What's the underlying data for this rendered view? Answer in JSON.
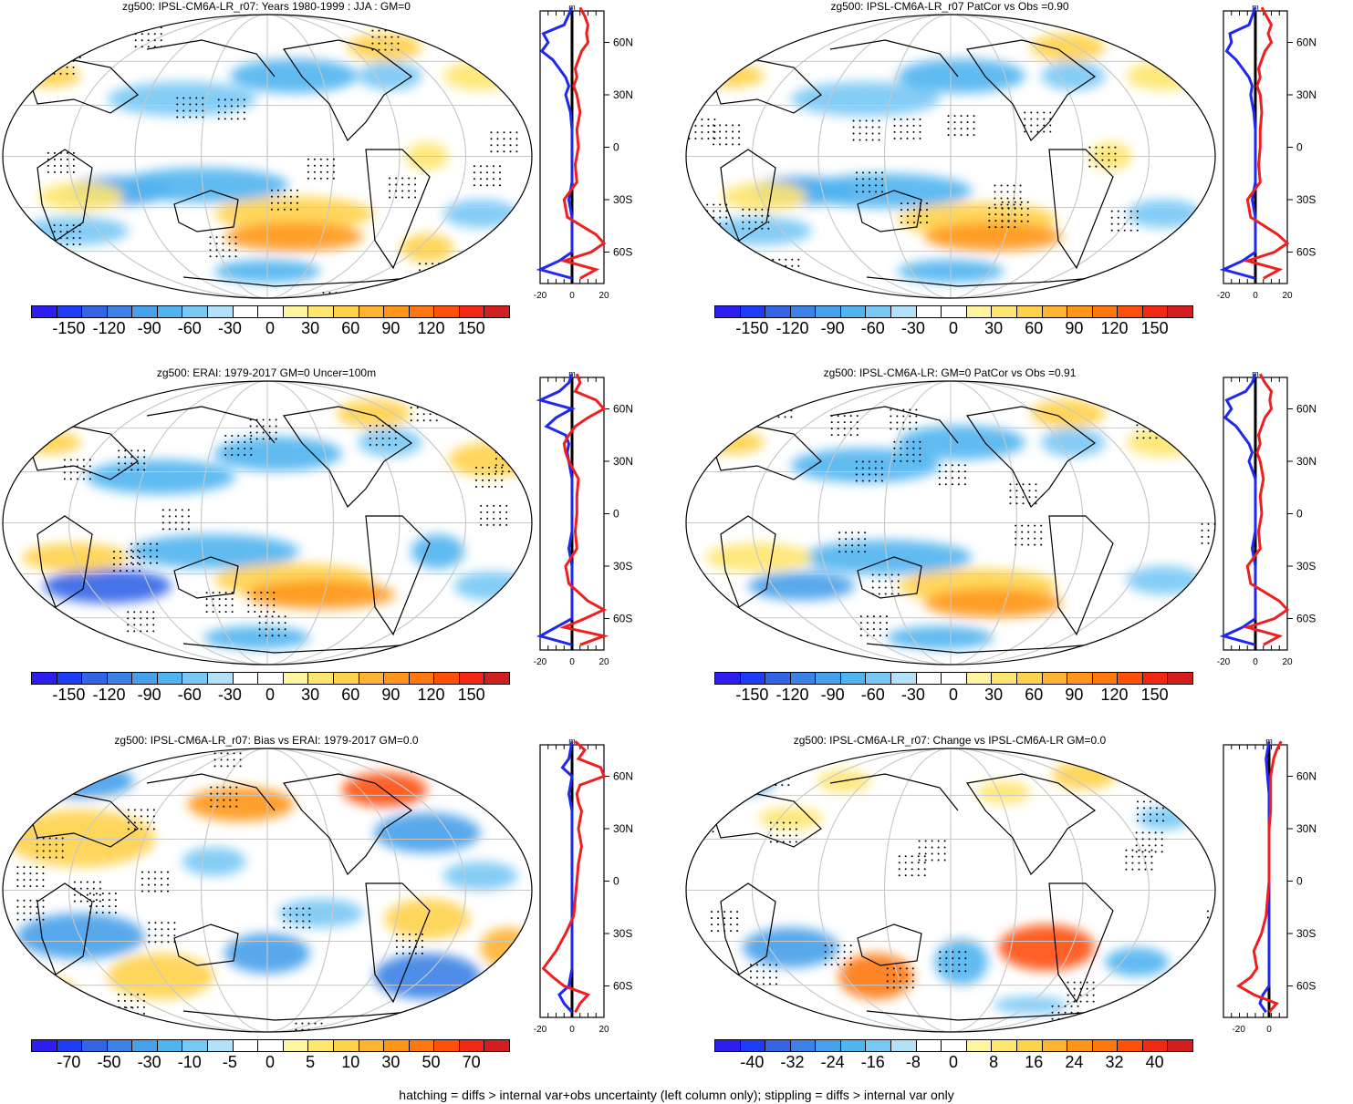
{
  "panels": [
    {
      "id": "p1",
      "title": "zg500: IPSL-CM6A-LR_r07: Years 1980-1999 : JJA : GM=0",
      "cbar": {
        "labels": [
          "-150",
          "-120",
          "-90",
          "-60",
          "-30",
          "0",
          "30",
          "60",
          "90",
          "120",
          "150"
        ]
      },
      "profile": {
        "xticks": [
          "-20",
          "0",
          "20"
        ],
        "xlim": [
          -20,
          20
        ]
      }
    },
    {
      "id": "p2",
      "title": "zg500: IPSL-CM6A-LR_r07 PatCor vs Obs =0.90",
      "cbar": {
        "labels": [
          "-150",
          "-120",
          "-90",
          "-60",
          "-30",
          "0",
          "30",
          "60",
          "90",
          "120",
          "150"
        ]
      },
      "profile": {
        "xticks": [
          "-20",
          "0",
          "20"
        ],
        "xlim": [
          -20,
          20
        ]
      }
    },
    {
      "id": "p3",
      "title": "zg500: ERAI: 1979-2017 GM=0 Uncer=100m",
      "cbar": {
        "labels": [
          "-150",
          "-120",
          "-90",
          "-60",
          "-30",
          "0",
          "30",
          "60",
          "90",
          "120",
          "150"
        ]
      },
      "profile": {
        "xticks": [
          "-20",
          "0",
          "20"
        ],
        "xlim": [
          -20,
          20
        ]
      }
    },
    {
      "id": "p4",
      "title": "zg500: IPSL-CM6A-LR: GM=0 PatCor vs Obs =0.91",
      "cbar": {
        "labels": [
          "-150",
          "-120",
          "-90",
          "-60",
          "-30",
          "0",
          "30",
          "60",
          "90",
          "120",
          "150"
        ]
      },
      "profile": {
        "xticks": [
          "-20",
          "0",
          "20"
        ],
        "xlim": [
          -20,
          20
        ]
      }
    },
    {
      "id": "p5",
      "title": "zg500: IPSL-CM6A-LR_r07: Bias vs ERAI: 1979-2017 GM=0.0",
      "cbar": {
        "labels": [
          "-70",
          "-50",
          "-30",
          "-10",
          "-5",
          "0",
          "5",
          "10",
          "30",
          "50",
          "70"
        ]
      },
      "profile": {
        "xticks": [
          "-20",
          "0",
          "20"
        ],
        "xlim": [
          -20,
          20
        ]
      }
    },
    {
      "id": "p6",
      "title": "zg500: IPSL-CM6A-LR_r07: Change vs IPSL-CM6A-LR GM=0.0",
      "cbar": {
        "labels": [
          "-40",
          "-32",
          "-24",
          "-16",
          "-8",
          "0",
          "8",
          "16",
          "24",
          "32",
          "40"
        ]
      },
      "profile": {
        "xticks": [
          "-20",
          "0"
        ],
        "xlim": [
          -30,
          12
        ]
      }
    }
  ],
  "lat_labels": [
    "60N",
    "30N",
    "0",
    "30S",
    "60S"
  ],
  "unit_label": "m",
  "colors": [
    "#2d1ef0",
    "#1e3cf5",
    "#3264e6",
    "#3c82e6",
    "#46a0ea",
    "#50b4f0",
    "#78c8f5",
    "#b4e1fa",
    "#ffffff",
    "#ffffff",
    "#fff5a0",
    "#ffe66e",
    "#ffd24b",
    "#ffb432",
    "#ff9619",
    "#ff780f",
    "#ff500a",
    "#f02814",
    "#d21e1e"
  ],
  "footer": "hatching = diffs > internal var+obs uncertainty (left column only); stippling = diffs > internal var only",
  "chart_data": [
    {
      "type": "heatmap",
      "panel": "p1",
      "title": "zg500: IPSL-CM6A-LR_r07: Years 1980-1999 : JJA : GM=0",
      "zlevels": [
        -150,
        -120,
        -90,
        -60,
        -30,
        0,
        30,
        60,
        90,
        120,
        150
      ],
      "profile": {
        "type": "line",
        "ylabel_ticks": [
          "60N",
          "30N",
          "0",
          "30S",
          "60S"
        ],
        "xlim": [
          -20,
          20
        ],
        "series": [
          {
            "name": "blue",
            "lat": [
              80,
              70,
              65,
              60,
              55,
              50,
              45,
              40,
              35,
              30,
              20,
              10,
              0,
              -10,
              -20,
              -30,
              -40,
              -50,
              -60,
              -65,
              -70,
              -75
            ],
            "values": [
              0,
              -5,
              -18,
              -15,
              -19,
              -12,
              -8,
              -4,
              -2,
              -4,
              -1,
              0,
              0,
              0,
              0,
              -2,
              0,
              0,
              0,
              -8,
              -20,
              0
            ]
          },
          {
            "name": "red",
            "lat": [
              80,
              75,
              70,
              65,
              60,
              55,
              50,
              45,
              40,
              35,
              30,
              20,
              10,
              0,
              -10,
              -20,
              -30,
              -40,
              -50,
              -55,
              -60,
              -65,
              -70,
              -75
            ],
            "values": [
              5,
              8,
              10,
              9,
              10,
              6,
              4,
              2,
              3,
              1,
              3,
              5,
              3,
              4,
              2,
              3,
              -5,
              -3,
              15,
              20,
              12,
              -5,
              15,
              5
            ]
          }
        ]
      }
    },
    {
      "type": "heatmap",
      "panel": "p2",
      "title": "zg500: IPSL-CM6A-LR_r07 PatCor vs Obs =0.90",
      "zlevels": [
        -150,
        -120,
        -90,
        -60,
        -30,
        0,
        30,
        60,
        90,
        120,
        150
      ],
      "profile": {
        "type": "line",
        "ylabel_ticks": [
          "60N",
          "30N",
          "0",
          "30S",
          "60S"
        ],
        "xlim": [
          -20,
          20
        ],
        "series": [
          {
            "name": "blue",
            "lat": [
              80,
              70,
              65,
              60,
              55,
              50,
              45,
              40,
              35,
              30,
              20,
              10,
              0,
              -10,
              -20,
              -30,
              -40,
              -50,
              -60,
              -65,
              -70,
              -75
            ],
            "values": [
              0,
              -4,
              -16,
              -15,
              -18,
              -12,
              -8,
              -4,
              -2,
              -3,
              -1,
              0,
              0,
              0,
              0,
              -2,
              0,
              0,
              0,
              -8,
              -20,
              0
            ]
          },
          {
            "name": "red",
            "lat": [
              80,
              75,
              70,
              65,
              60,
              55,
              50,
              45,
              40,
              35,
              30,
              20,
              10,
              0,
              -10,
              -20,
              -30,
              -40,
              -50,
              -55,
              -60,
              -65,
              -70,
              -75
            ],
            "values": [
              4,
              7,
              10,
              8,
              10,
              6,
              4,
              2,
              3,
              1,
              3,
              4,
              3,
              3,
              2,
              3,
              -5,
              -3,
              14,
              20,
              12,
              -5,
              15,
              5
            ]
          }
        ]
      }
    },
    {
      "type": "heatmap",
      "panel": "p3",
      "title": "zg500: ERAI: 1979-2017 GM=0 Uncer=100m",
      "zlevels": [
        -150,
        -120,
        -90,
        -60,
        -30,
        0,
        30,
        60,
        90,
        120,
        150
      ],
      "profile": {
        "type": "line",
        "ylabel_ticks": [
          "60N",
          "30N",
          "0",
          "30S",
          "60S"
        ],
        "xlim": [
          -20,
          20
        ],
        "series": [
          {
            "name": "blue",
            "lat": [
              80,
              75,
              70,
              65,
              60,
              55,
              50,
              45,
              40,
              35,
              30,
              20,
              10,
              0,
              -10,
              -20,
              -30,
              -40,
              -50,
              -60,
              -65,
              -70,
              -75
            ],
            "values": [
              0,
              -2,
              -8,
              -20,
              0,
              -10,
              -16,
              -4,
              -2,
              -3,
              -2,
              0,
              0,
              0,
              0,
              -2,
              0,
              0,
              0,
              0,
              -10,
              -20,
              0
            ]
          },
          {
            "name": "red",
            "lat": [
              80,
              75,
              70,
              65,
              60,
              55,
              50,
              45,
              40,
              35,
              30,
              20,
              10,
              0,
              -10,
              -20,
              -30,
              -40,
              -50,
              -55,
              -60,
              -65,
              -70,
              -75
            ],
            "values": [
              3,
              5,
              2,
              15,
              20,
              10,
              2,
              -2,
              -5,
              -4,
              -2,
              4,
              3,
              3,
              2,
              3,
              -4,
              -2,
              10,
              20,
              8,
              -5,
              20,
              5
            ]
          }
        ]
      }
    },
    {
      "type": "heatmap",
      "panel": "p4",
      "title": "zg500: IPSL-CM6A-LR: GM=0 PatCor vs Obs =0.91",
      "zlevels": [
        -150,
        -120,
        -90,
        -60,
        -30,
        0,
        30,
        60,
        90,
        120,
        150
      ],
      "profile": {
        "type": "line",
        "ylabel_ticks": [
          "60N",
          "30N",
          "0",
          "30S",
          "60S"
        ],
        "xlim": [
          -20,
          20
        ],
        "series": [
          {
            "name": "blue",
            "lat": [
              80,
              75,
              70,
              65,
              60,
              55,
              50,
              45,
              40,
              35,
              30,
              20,
              10,
              0,
              -10,
              -20,
              -30,
              -40,
              -50,
              -60,
              -65,
              -70,
              -75
            ],
            "values": [
              0,
              -2,
              -6,
              -18,
              -15,
              -19,
              -12,
              -8,
              -4,
              -2,
              -4,
              0,
              0,
              0,
              0,
              -2,
              0,
              0,
              0,
              0,
              -8,
              -20,
              0
            ]
          },
          {
            "name": "red",
            "lat": [
              80,
              75,
              70,
              65,
              60,
              55,
              50,
              45,
              40,
              35,
              30,
              20,
              10,
              0,
              -10,
              -20,
              -30,
              -40,
              -50,
              -55,
              -60,
              -65,
              -70,
              -75
            ],
            "values": [
              3,
              6,
              10,
              9,
              10,
              6,
              4,
              2,
              3,
              1,
              3,
              5,
              3,
              4,
              2,
              3,
              -5,
              -3,
              15,
              20,
              12,
              -5,
              15,
              5
            ]
          }
        ]
      }
    },
    {
      "type": "heatmap",
      "panel": "p5",
      "title": "zg500: IPSL-CM6A-LR_r07: Bias vs ERAI: 1979-2017 GM=0.0",
      "zlevels": [
        -70,
        -50,
        -30,
        -10,
        -5,
        0,
        5,
        10,
        30,
        50,
        70
      ],
      "profile": {
        "type": "line",
        "ylabel_ticks": [
          "60N",
          "30N",
          "0",
          "30S",
          "60S"
        ],
        "xlim": [
          -20,
          20
        ],
        "series": [
          {
            "name": "blue",
            "lat": [
              80,
              75,
              70,
              65,
              60,
              55,
              50,
              45,
              40,
              35,
              30,
              20,
              10,
              0,
              -10,
              -20,
              -30,
              -40,
              -50,
              -60,
              -65,
              -70,
              -75
            ],
            "values": [
              0,
              -1,
              -2,
              -6,
              0,
              -1,
              -2,
              -1,
              0,
              0,
              0,
              0,
              0,
              0,
              0,
              0,
              0,
              0,
              0,
              -2,
              -8,
              -5,
              0
            ]
          },
          {
            "name": "red",
            "lat": [
              80,
              75,
              70,
              65,
              60,
              55,
              50,
              45,
              40,
              35,
              30,
              20,
              10,
              0,
              -10,
              -20,
              -30,
              -40,
              -50,
              -55,
              -60,
              -65,
              -70,
              -75
            ],
            "values": [
              2,
              8,
              4,
              18,
              20,
              5,
              3,
              4,
              6,
              5,
              4,
              6,
              4,
              3,
              2,
              1,
              -4,
              -10,
              -18,
              -12,
              -5,
              10,
              5,
              2
            ]
          }
        ]
      }
    },
    {
      "type": "heatmap",
      "panel": "p6",
      "title": "zg500: IPSL-CM6A-LR_r07: Change vs IPSL-CM6A-LR GM=0.0",
      "zlevels": [
        -40,
        -32,
        -24,
        -16,
        -8,
        0,
        8,
        16,
        24,
        32,
        40
      ],
      "profile": {
        "type": "line",
        "ylabel_ticks": [
          "60N",
          "30N",
          "0",
          "30S",
          "60S"
        ],
        "xlim": [
          -30,
          12
        ],
        "series": [
          {
            "name": "blue",
            "lat": [
              80,
              70,
              60,
              50,
              40,
              30,
              20,
              10,
              0,
              -10,
              -20,
              -30,
              -40,
              -50,
              -60,
              -65,
              -70,
              -75
            ],
            "values": [
              0,
              -2,
              -1,
              0,
              0,
              0,
              0,
              0,
              0,
              0,
              0,
              0,
              0,
              0,
              0,
              -4,
              -6,
              -2
            ]
          },
          {
            "name": "red",
            "lat": [
              80,
              75,
              70,
              60,
              50,
              40,
              30,
              20,
              10,
              0,
              -10,
              -20,
              -30,
              -40,
              -50,
              -55,
              -60,
              -65,
              -70,
              -75
            ],
            "values": [
              8,
              5,
              3,
              1,
              1,
              1,
              0,
              0,
              0,
              0,
              -1,
              -2,
              -5,
              -10,
              -8,
              -12,
              -20,
              -10,
              5,
              0
            ]
          }
        ]
      }
    }
  ]
}
